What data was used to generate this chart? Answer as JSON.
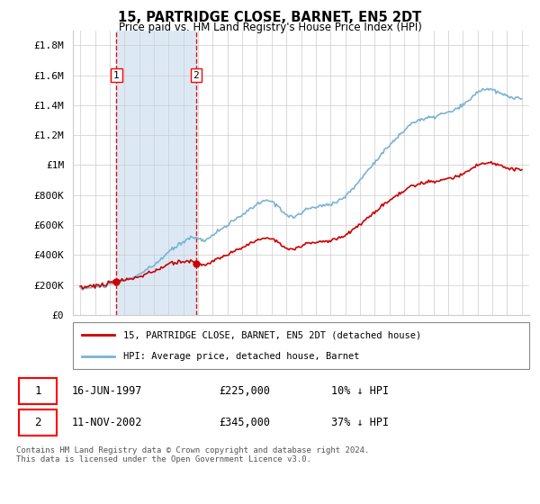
{
  "title": "15, PARTRIDGE CLOSE, BARNET, EN5 2DT",
  "subtitle": "Price paid vs. HM Land Registry's House Price Index (HPI)",
  "ylabel_ticks": [
    "£0",
    "£200K",
    "£400K",
    "£600K",
    "£800K",
    "£1M",
    "£1.2M",
    "£1.4M",
    "£1.6M",
    "£1.8M"
  ],
  "ytick_values": [
    0,
    200000,
    400000,
    600000,
    800000,
    1000000,
    1200000,
    1400000,
    1600000,
    1800000
  ],
  "ylim": [
    0,
    1900000
  ],
  "purchase1": {
    "date": "16-JUN-1997",
    "price": 225000,
    "year": 1997.46,
    "label": "1",
    "hpi_pct": "10% ↓ HPI"
  },
  "purchase2": {
    "date": "11-NOV-2002",
    "price": 345000,
    "year": 2002.86,
    "label": "2",
    "hpi_pct": "37% ↓ HPI"
  },
  "legend_line1": "15, PARTRIDGE CLOSE, BARNET, EN5 2DT (detached house)",
  "legend_line2": "HPI: Average price, detached house, Barnet",
  "footer": "Contains HM Land Registry data © Crown copyright and database right 2024.\nThis data is licensed under the Open Government Licence v3.0.",
  "hpi_color": "#7ab3d4",
  "price_color": "#cc0000",
  "shade_color": "#dce9f5",
  "background_color": "#ffffff",
  "grid_color": "#cccccc"
}
